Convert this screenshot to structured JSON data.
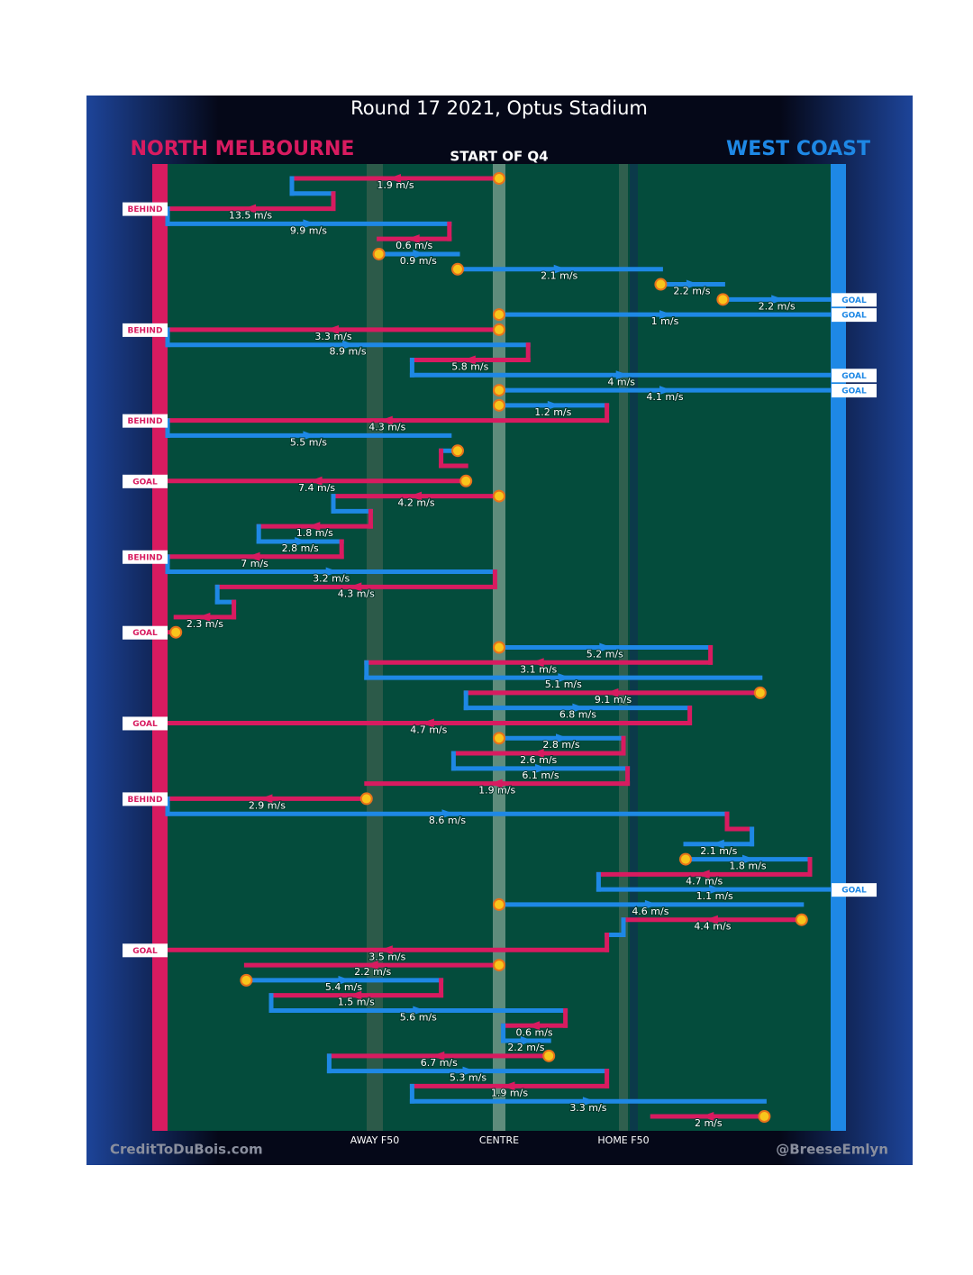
{
  "chart_data": {
    "type": "possession-chain",
    "title": "Round 17 2021, Optus Stadium",
    "subtitle": "START OF Q4",
    "teams": [
      {
        "name": "NORTH MELBOURNE",
        "color": "#d81b60"
      },
      {
        "name": "WEST COAST",
        "color": "#1e88e5"
      }
    ],
    "xlim": [
      -80,
      80
    ],
    "xticks": [
      {
        "value": -30,
        "label": "AWAY F50"
      },
      {
        "value": 0,
        "label": "CENTRE"
      },
      {
        "value": 30,
        "label": "HOME F50"
      }
    ],
    "footer": [
      "CreditToDuBois.com",
      "@BreeseEmlyn"
    ],
    "rows": [
      {
        "team": "NORTH MELBOURNE",
        "from": 0,
        "to": -50,
        "speed": "1.9 m/s",
        "stoppage": true
      },
      {
        "team": "WEST COAST",
        "from": -50,
        "to": -40
      },
      {
        "team": "NORTH MELBOURNE",
        "from": -40,
        "to": -80,
        "speed": "13.5 m/s",
        "result": "BEHIND"
      },
      {
        "team": "WEST COAST",
        "from": -80,
        "to": -12,
        "speed": "9.9 m/s"
      },
      {
        "team": "NORTH MELBOURNE",
        "from": -12,
        "to": -29,
        "speed": "0.6 m/s"
      },
      {
        "team": "WEST COAST",
        "from": -29,
        "to": -10,
        "speed": "0.9 m/s",
        "stoppage": true
      },
      {
        "team": "WEST COAST",
        "from": -10,
        "to": 39,
        "speed": "2.1 m/s",
        "stoppage": true
      },
      {
        "team": "WEST COAST",
        "from": 39,
        "to": 54,
        "speed": "2.2 m/s",
        "stoppage": true
      },
      {
        "team": "WEST COAST",
        "from": 54,
        "to": 80,
        "speed": "2.2 m/s",
        "stoppage": true,
        "result": "GOAL"
      },
      {
        "team": "WEST COAST",
        "from": 0,
        "to": 80,
        "speed": "1 m/s",
        "stoppage": true,
        "result": "GOAL"
      },
      {
        "team": "NORTH MELBOURNE",
        "from": 0,
        "to": -80,
        "speed": "3.3 m/s",
        "stoppage": true,
        "result": "BEHIND"
      },
      {
        "team": "WEST COAST",
        "from": -80,
        "to": 7,
        "speed": "8.9 m/s"
      },
      {
        "team": "NORTH MELBOURNE",
        "from": 7,
        "to": -21,
        "speed": "5.8 m/s"
      },
      {
        "team": "WEST COAST",
        "from": -21,
        "to": 80,
        "speed": "4 m/s",
        "result": "GOAL"
      },
      {
        "team": "WEST COAST",
        "from": 0,
        "to": 80,
        "speed": "4.1 m/s",
        "stoppage": true,
        "result": "GOAL"
      },
      {
        "team": "WEST COAST",
        "from": 0,
        "to": 26,
        "speed": "1.2 m/s",
        "stoppage": true
      },
      {
        "team": "NORTH MELBOURNE",
        "from": 26,
        "to": -80,
        "speed": "4.3 m/s",
        "result": "BEHIND"
      },
      {
        "team": "WEST COAST",
        "from": -80,
        "to": -12,
        "speed": "5.5 m/s"
      },
      {
        "team": "WEST COAST",
        "from": -10,
        "to": -14,
        "stoppage": true
      },
      {
        "team": "NORTH MELBOURNE",
        "from": -14,
        "to": -8
      },
      {
        "team": "NORTH MELBOURNE",
        "from": -8,
        "to": -80,
        "speed": "7.4 m/s",
        "stoppage": true,
        "result": "GOAL"
      },
      {
        "team": "NORTH MELBOURNE",
        "from": 0,
        "to": -40,
        "speed": "4.2 m/s",
        "stoppage": true
      },
      {
        "team": "WEST COAST",
        "from": -40,
        "to": -31
      },
      {
        "team": "NORTH MELBOURNE",
        "from": -31,
        "to": -58,
        "speed": "1.8 m/s"
      },
      {
        "team": "WEST COAST",
        "from": -58,
        "to": -38,
        "speed": "2.8 m/s"
      },
      {
        "team": "NORTH MELBOURNE",
        "from": -38,
        "to": -80,
        "speed": "7 m/s",
        "result": "BEHIND"
      },
      {
        "team": "WEST COAST",
        "from": -80,
        "to": -1,
        "speed": "3.2 m/s"
      },
      {
        "team": "NORTH MELBOURNE",
        "from": -1,
        "to": -68,
        "speed": "4.3 m/s"
      },
      {
        "team": "WEST COAST",
        "from": -68,
        "to": -64
      },
      {
        "team": "NORTH MELBOURNE",
        "from": -64,
        "to": -78,
        "speed": "2.3 m/s"
      },
      {
        "team": "NORTH MELBOURNE",
        "from": -78,
        "to": -80,
        "stoppage": true,
        "result": "GOAL"
      },
      {
        "team": "WEST COAST",
        "from": 0,
        "to": 51,
        "speed": "5.2 m/s",
        "stoppage": true
      },
      {
        "team": "NORTH MELBOURNE",
        "from": 51,
        "to": -32,
        "speed": "3.1 m/s"
      },
      {
        "team": "WEST COAST",
        "from": -32,
        "to": 63,
        "speed": "5.1 m/s"
      },
      {
        "team": "NORTH MELBOURNE",
        "from": 63,
        "to": -8,
        "speed": "9.1 m/s",
        "stoppage": true
      },
      {
        "team": "WEST COAST",
        "from": -8,
        "to": 46,
        "speed": "6.8 m/s"
      },
      {
        "team": "NORTH MELBOURNE",
        "from": 46,
        "to": -80,
        "speed": "4.7 m/s",
        "result": "GOAL"
      },
      {
        "team": "WEST COAST",
        "from": 0,
        "to": 30,
        "speed": "2.8 m/s",
        "stoppage": true
      },
      {
        "team": "NORTH MELBOURNE",
        "from": 30,
        "to": -11,
        "speed": "2.6 m/s"
      },
      {
        "team": "WEST COAST",
        "from": -11,
        "to": 31,
        "speed": "6.1 m/s"
      },
      {
        "team": "NORTH MELBOURNE",
        "from": 31,
        "to": -32,
        "speed": "1.9 m/s"
      },
      {
        "team": "NORTH MELBOURNE",
        "from": -32,
        "to": -80,
        "speed": "2.9 m/s",
        "stoppage": true,
        "result": "BEHIND"
      },
      {
        "team": "WEST COAST",
        "from": -80,
        "to": 55,
        "speed": "8.6 m/s"
      },
      {
        "team": "NORTH MELBOURNE",
        "from": 55,
        "to": 61
      },
      {
        "team": "WEST COAST",
        "from": 61,
        "to": 45,
        "speed": "2.1 m/s"
      },
      {
        "team": "WEST COAST",
        "from": 45,
        "to": 75,
        "speed": "1.8 m/s",
        "stoppage": true
      },
      {
        "team": "NORTH MELBOURNE",
        "from": 75,
        "to": 24,
        "speed": "4.7 m/s"
      },
      {
        "team": "WEST COAST",
        "from": 24,
        "to": 80,
        "speed": "1.1 m/s",
        "result": "GOAL"
      },
      {
        "team": "WEST COAST",
        "from": 0,
        "to": 73,
        "speed": "4.6 m/s",
        "stoppage": true
      },
      {
        "team": "NORTH MELBOURNE",
        "from": 73,
        "to": 30,
        "speed": "4.4 m/s",
        "stoppage": true
      },
      {
        "team": "WEST COAST",
        "from": 30,
        "to": 26
      },
      {
        "team": "NORTH MELBOURNE",
        "from": 26,
        "to": -80,
        "speed": "3.5 m/s",
        "result": "GOAL"
      },
      {
        "team": "NORTH MELBOURNE",
        "from": 0,
        "to": -61,
        "speed": "2.2 m/s",
        "stoppage": true
      },
      {
        "team": "WEST COAST",
        "from": -61,
        "to": -14,
        "speed": "5.4 m/s",
        "stoppage": true
      },
      {
        "team": "NORTH MELBOURNE",
        "from": -14,
        "to": -55,
        "speed": "1.5 m/s"
      },
      {
        "team": "WEST COAST",
        "from": -55,
        "to": 16,
        "speed": "5.6 m/s"
      },
      {
        "team": "NORTH MELBOURNE",
        "from": 16,
        "to": 1,
        "speed": "0.6 m/s"
      },
      {
        "team": "WEST COAST",
        "from": 1,
        "to": 12,
        "speed": "2.2 m/s"
      },
      {
        "team": "NORTH MELBOURNE",
        "from": 12,
        "to": -41,
        "speed": "6.7 m/s",
        "stoppage": true
      },
      {
        "team": "WEST COAST",
        "from": -41,
        "to": 26,
        "speed": "5.3 m/s"
      },
      {
        "team": "NORTH MELBOURNE",
        "from": 26,
        "to": -21,
        "speed": "1.9 m/s"
      },
      {
        "team": "WEST COAST",
        "from": -21,
        "to": 64,
        "speed": "3.3 m/s"
      },
      {
        "team": "NORTH MELBOURNE",
        "from": 64,
        "to": 37,
        "speed": "2 m/s",
        "stoppage": true
      }
    ]
  }
}
